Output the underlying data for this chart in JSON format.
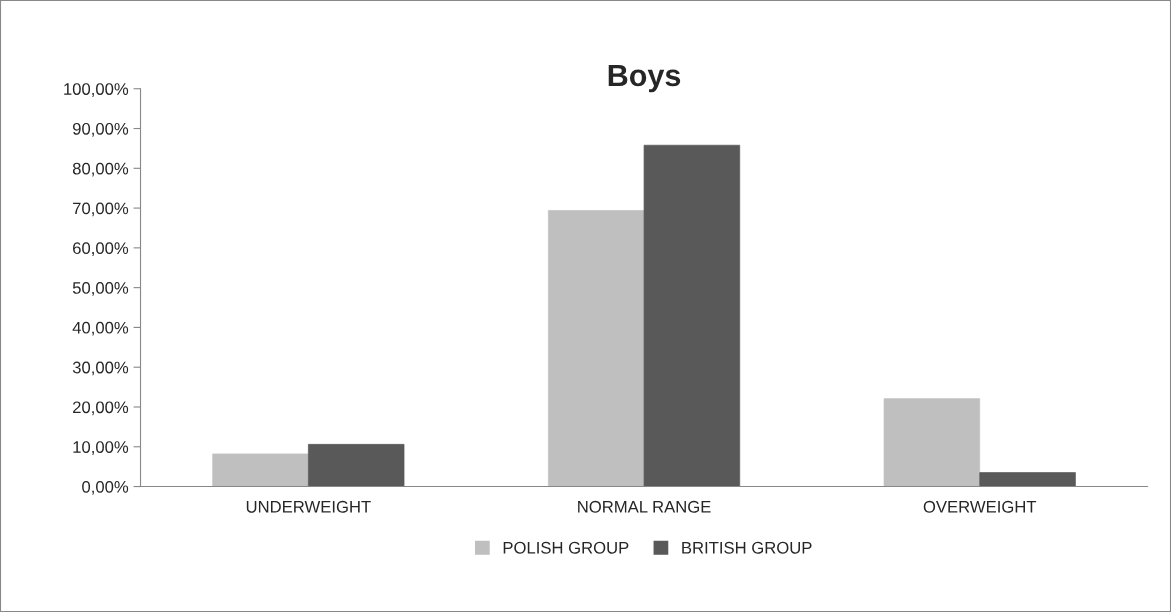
{
  "chart_data": {
    "type": "bar",
    "title": "Boys",
    "categories": [
      "UNDERWEIGHT",
      "NORMAL RANGE",
      "OVERWEIGHT"
    ],
    "series": [
      {
        "name": "POLISH GROUP",
        "color": "#bfbfbf",
        "values": [
          8.2,
          69.4,
          22.1
        ]
      },
      {
        "name": "BRITISH GROUP",
        "color": "#595959",
        "values": [
          10.6,
          85.8,
          3.5
        ]
      }
    ],
    "ylim": [
      0,
      100
    ],
    "yticks": [
      {
        "value": 0,
        "label": "0,00%"
      },
      {
        "value": 10,
        "label": "10,00%"
      },
      {
        "value": 20,
        "label": "20,00%"
      },
      {
        "value": 30,
        "label": "30,00%"
      },
      {
        "value": 40,
        "label": "40,00%"
      },
      {
        "value": 50,
        "label": "50,00%"
      },
      {
        "value": 60,
        "label": "60,00%"
      },
      {
        "value": 70,
        "label": "70,00%"
      },
      {
        "value": 80,
        "label": "80,00%"
      },
      {
        "value": 90,
        "label": "90,00%"
      },
      {
        "value": 100,
        "label": "100,00%"
      }
    ],
    "grid": false,
    "legend": "bottom"
  }
}
